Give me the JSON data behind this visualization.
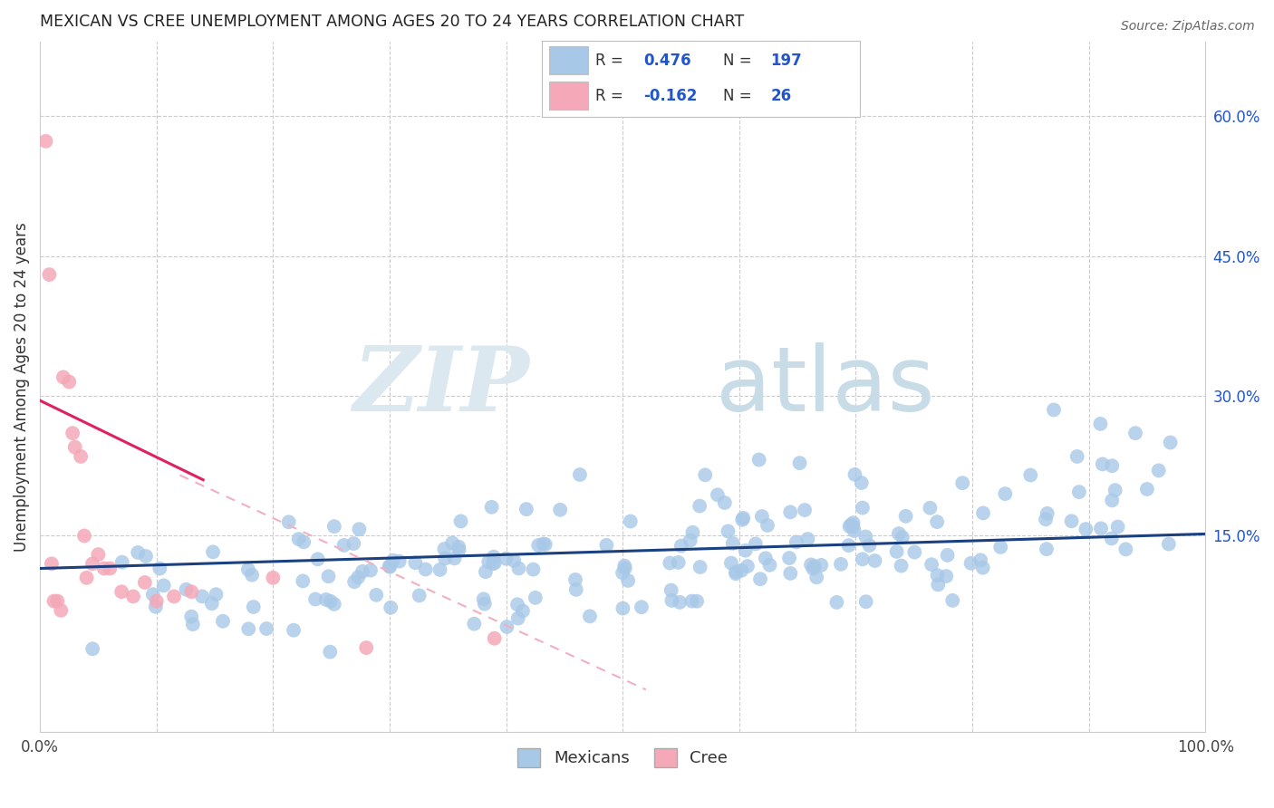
{
  "title": "MEXICAN VS CREE UNEMPLOYMENT AMONG AGES 20 TO 24 YEARS CORRELATION CHART",
  "source": "Source: ZipAtlas.com",
  "ylabel": "Unemployment Among Ages 20 to 24 years",
  "xlim": [
    0.0,
    1.0
  ],
  "ylim": [
    -0.06,
    0.68
  ],
  "yticks_right": [
    0.15,
    0.3,
    0.45,
    0.6
  ],
  "ytick_right_labels": [
    "15.0%",
    "30.0%",
    "45.0%",
    "60.0%"
  ],
  "mexican_color": "#a8c8e8",
  "cree_color": "#f4a8b8",
  "mexican_line_color": "#1a4080",
  "cree_line_solid_color": "#e02060",
  "cree_line_dash_color": "#f0b0c0",
  "R_mexican": 0.476,
  "N_mexican": 197,
  "R_cree": -0.162,
  "N_cree": 26,
  "watermark_zip": "ZIP",
  "watermark_atlas": "atlas",
  "background_color": "#ffffff",
  "grid_color": "#cccccc",
  "title_color": "#222222",
  "legend_r_n_color": "#2255cc",
  "legend_n_label_color": "#333333",
  "legend_box_edge_color": "#c0c0c0"
}
